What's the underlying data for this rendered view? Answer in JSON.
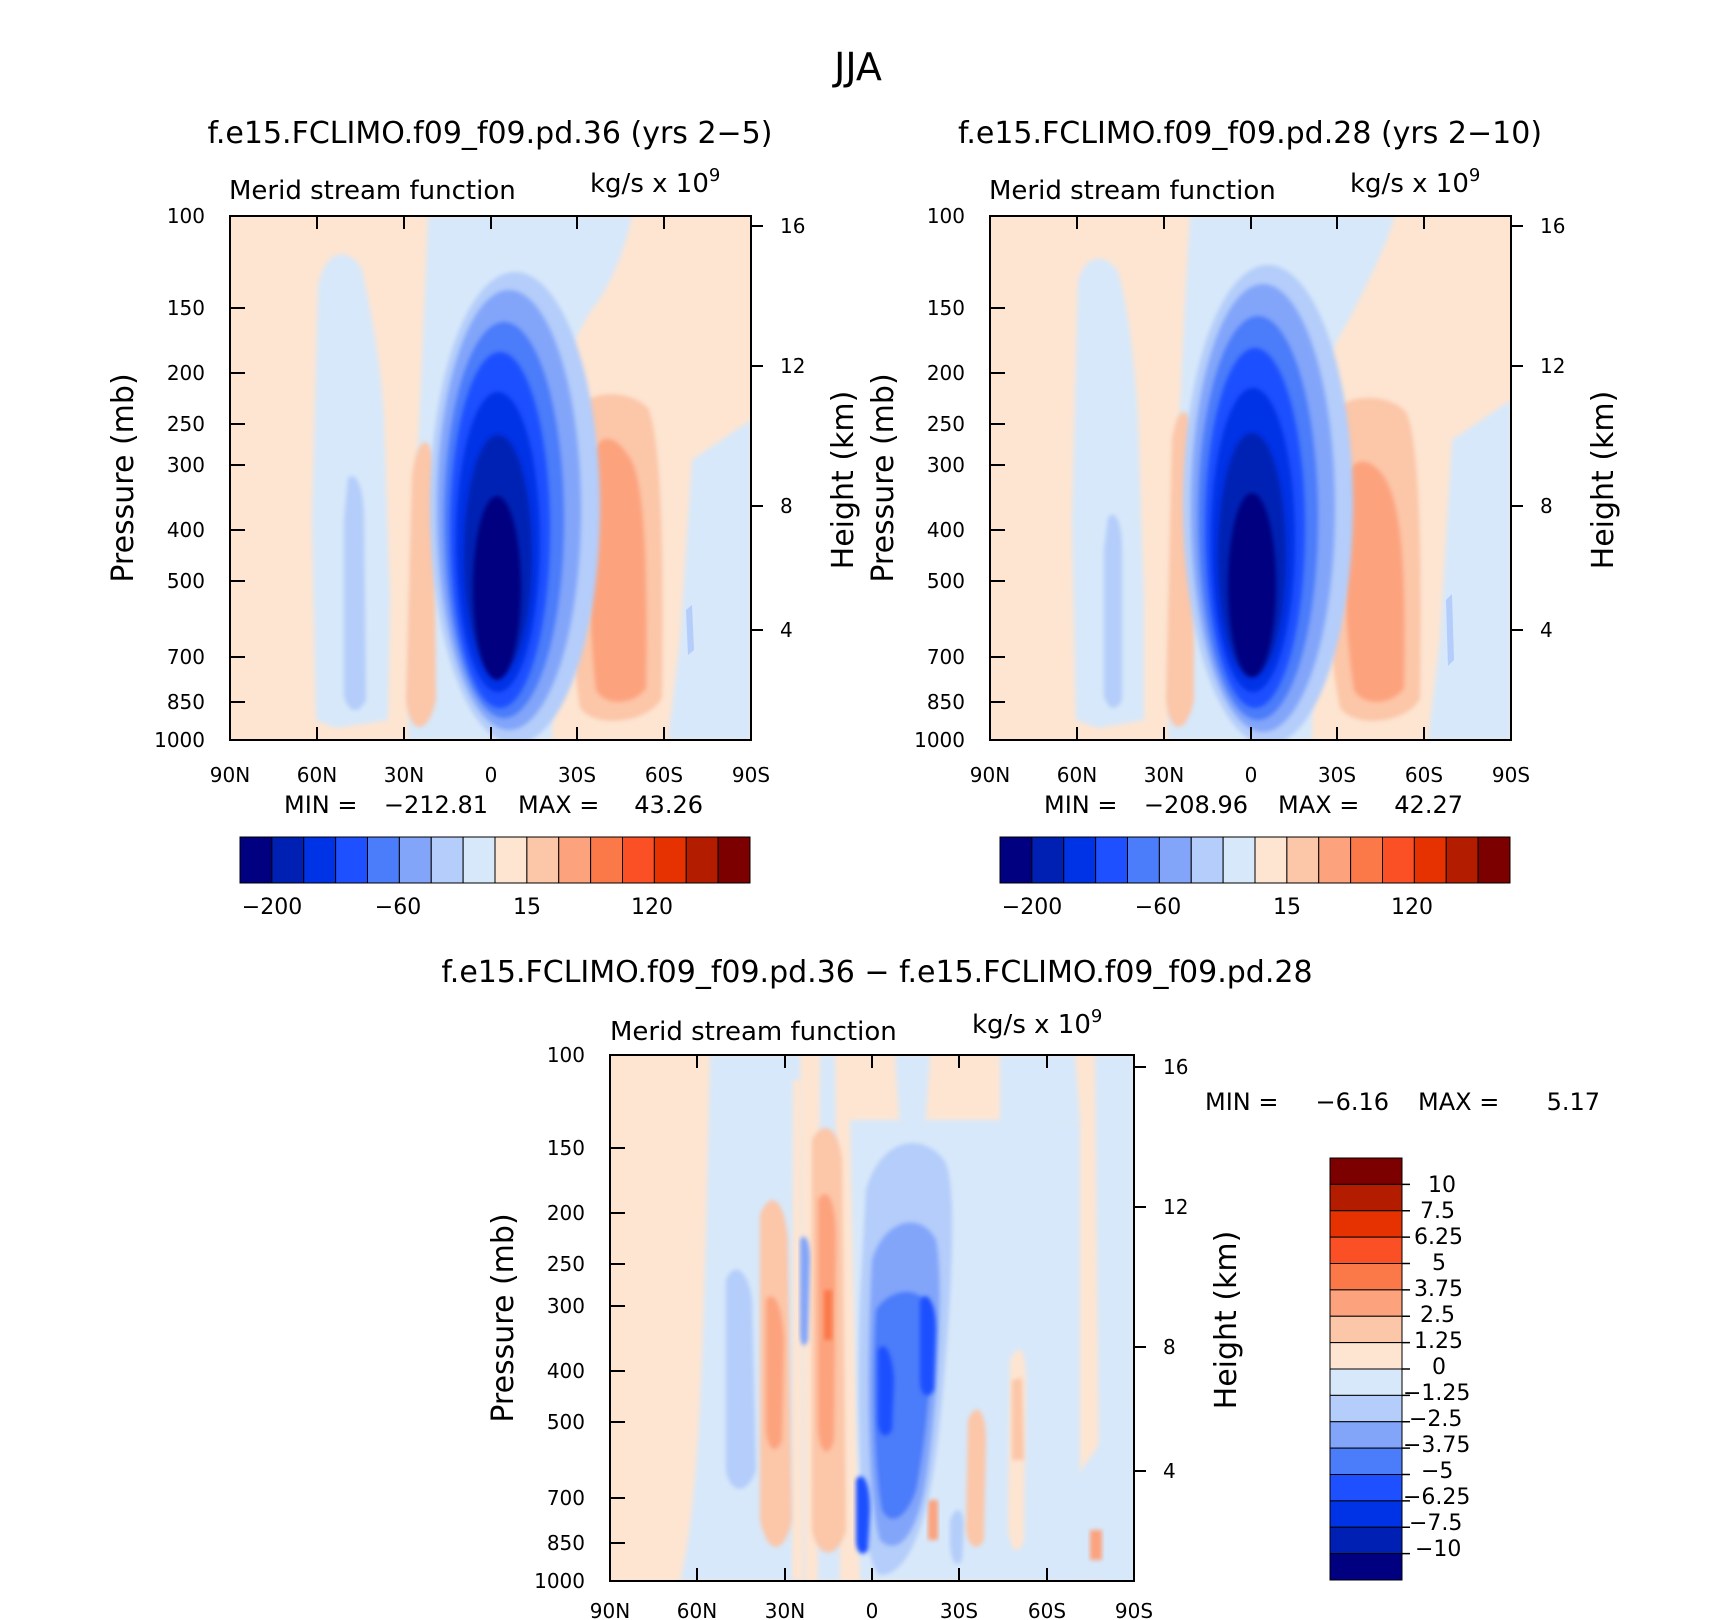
{
  "figure": {
    "title": "JJA"
  },
  "palette": {
    "blues": [
      "#000080",
      "#0020b4",
      "#0032e6",
      "#1e50ff",
      "#4b7cfa",
      "#82a5fa",
      "#b4cdfa",
      "#d7e8fa"
    ],
    "reds": [
      "#fde5d2",
      "#fcc6a8",
      "#fca37e",
      "#fb7848",
      "#fb5025",
      "#e63200",
      "#b41c00",
      "#7d0000"
    ]
  },
  "colorbar_small": {
    "ticks": [
      "−200",
      "−60",
      "15",
      "120"
    ]
  },
  "colorbar_diff": {
    "labels": [
      "10",
      "7.5",
      "6.25",
      "5",
      "3.75",
      "2.5",
      "1.25",
      "0",
      "−1.25",
      "−2.5",
      "−3.75",
      "−5",
      "−6.25",
      "−7.5",
      "−10"
    ]
  },
  "chart_data": [
    {
      "type": "contour",
      "panel": "top-left",
      "title": "f.e15.FCLIMO.f09_f09.pd.36 (yrs 2−5)",
      "subtitle_left": "Merid stream function",
      "units": "kg/s x 10",
      "units_exp": "9",
      "ylabel": "Pressure (mb)",
      "y2label": "Height (km)",
      "yticks": [
        "100",
        "150",
        "200",
        "250",
        "300",
        "400",
        "500",
        "700",
        "850",
        "1000"
      ],
      "y2ticks": [
        "16",
        "12",
        "8",
        "4"
      ],
      "xticks": [
        "90N",
        "60N",
        "30N",
        "0",
        "30S",
        "60S",
        "90S"
      ],
      "min_label": "MIN =",
      "min_value": "−212.81",
      "max_label": "MAX =",
      "max_value": "43.26",
      "min": -212.81,
      "max": 43.26
    },
    {
      "type": "contour",
      "panel": "top-right",
      "title": "f.e15.FCLIMO.f09_f09.pd.28 (yrs 2−10)",
      "subtitle_left": "Merid stream function",
      "units": "kg/s x 10",
      "units_exp": "9",
      "ylabel": "Pressure (mb)",
      "y2label": "Height (km)",
      "yticks": [
        "100",
        "150",
        "200",
        "250",
        "300",
        "400",
        "500",
        "700",
        "850",
        "1000"
      ],
      "y2ticks": [
        "16",
        "12",
        "8",
        "4"
      ],
      "xticks": [
        "90N",
        "60N",
        "30N",
        "0",
        "30S",
        "60S",
        "90S"
      ],
      "min_label": "MIN =",
      "min_value": "−208.96",
      "max_label": "MAX =",
      "max_value": "42.27",
      "min": -208.96,
      "max": 42.27
    },
    {
      "type": "contour",
      "panel": "bottom",
      "title": "f.e15.FCLIMO.f09_f09.pd.36 − f.e15.FCLIMO.f09_f09.pd.28",
      "subtitle_left": "Merid stream function",
      "units": "kg/s x 10",
      "units_exp": "9",
      "ylabel": "Pressure (mb)",
      "y2label": "Height (km)",
      "yticks": [
        "100",
        "150",
        "200",
        "250",
        "300",
        "400",
        "500",
        "700",
        "850",
        "1000"
      ],
      "y2ticks": [
        "16",
        "12",
        "8",
        "4"
      ],
      "xticks": [
        "90N",
        "60N",
        "30N",
        "0",
        "30S",
        "60S",
        "90S"
      ],
      "min_label": "MIN =",
      "min_value": "−6.16",
      "max_label": "MAX =",
      "max_value": "5.17",
      "min": -6.16,
      "max": 5.17
    }
  ]
}
